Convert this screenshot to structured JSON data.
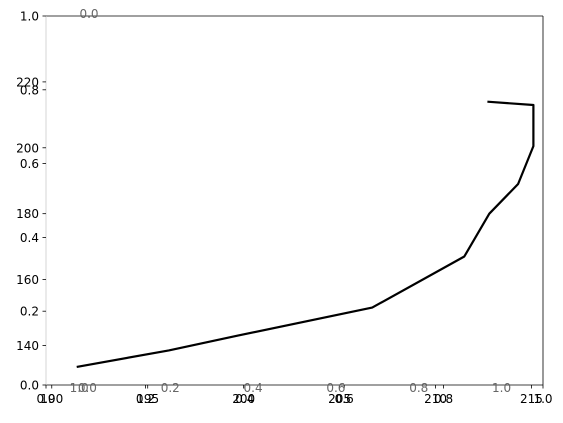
{
  "chart_data": [
    {
      "type": "line",
      "role": "unit-axes",
      "x_ticks": [
        "0.0",
        "0.2",
        "0.4",
        "0.6",
        "0.8",
        "1.0"
      ],
      "y_ticks": [
        "0.0",
        "0.2",
        "0.4",
        "0.6",
        "0.8",
        "1.0"
      ],
      "xlim": [
        0,
        1
      ],
      "ylim": [
        0,
        1
      ],
      "grid": false,
      "frame_color": "#000000"
    },
    {
      "type": "line",
      "role": "data",
      "xlim": [
        189.7,
        215.6
      ],
      "ylim": [
        128,
        240
      ],
      "x_ticks": [
        190,
        195,
        200,
        205,
        210,
        215
      ],
      "y_ticks": [
        140,
        160,
        180,
        200,
        220
      ],
      "series": [
        {
          "color": "#000000",
          "points": [
            [
              191.3,
              133.5
            ],
            [
              196.1,
              138.5
            ],
            [
              199.7,
              143.0
            ],
            [
              206.7,
              151.5
            ],
            [
              211.5,
              167.0
            ],
            [
              212.8,
              180.0
            ],
            [
              214.3,
              189.0
            ],
            [
              215.1,
              200.5
            ],
            [
              215.1,
              213.0
            ],
            [
              212.7,
              214.0
            ]
          ]
        }
      ],
      "grid": false
    },
    {
      "type": "line",
      "role": "stray-axis-labels",
      "x_ticks": [
        "1.0",
        "0.0",
        "0.2",
        "0.4",
        "0.6",
        "0.8",
        "1.0"
      ],
      "y_ticks": [
        "0.0"
      ],
      "xlim": [
        -0.1,
        1.1
      ],
      "ylim": [
        0,
        1
      ]
    }
  ]
}
